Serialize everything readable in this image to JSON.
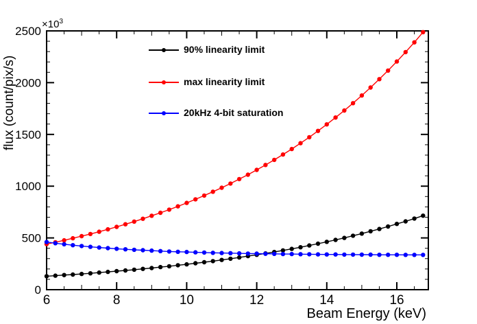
{
  "figure": {
    "background": "#ffffff",
    "frame_color": "#000000"
  },
  "y_axis": {
    "title": "flux (count/pix/s)",
    "power_label": "×10",
    "power_exponent": "3",
    "tick_labels": [
      "0",
      "500",
      "1000",
      "1500",
      "2000",
      "2500"
    ],
    "range": [
      0,
      2500
    ],
    "major_step": 500,
    "minor_step": 100
  },
  "x_axis": {
    "title": "Beam Energy (keV)",
    "tick_labels": [
      "6",
      "8",
      "10",
      "12",
      "14",
      "16"
    ],
    "range": [
      6,
      16.9
    ],
    "major_step": 2,
    "minor_step": 0.5
  },
  "legend": {
    "entries": [
      {
        "label": "90% linearity limit",
        "color": "#000000"
      },
      {
        "label": "max linearity limit",
        "color": "#ff0000"
      },
      {
        "label": "20kHz 4-bit saturation",
        "color": "#0000ff"
      }
    ]
  },
  "chart_data": {
    "type": "line",
    "title": "",
    "xlabel": "Beam Energy (keV)",
    "ylabel": "flux (count/pix/s)",
    "y_multiplier": "×10³",
    "xlim": [
      6,
      16.9
    ],
    "ylim": [
      0,
      2500
    ],
    "grid": false,
    "legend_position": "top-left-inside",
    "x": [
      6,
      6.25,
      6.5,
      6.75,
      7,
      7.25,
      7.5,
      7.75,
      8,
      8.25,
      8.5,
      8.75,
      9,
      9.25,
      9.5,
      9.75,
      10,
      10.25,
      10.5,
      10.75,
      11,
      11.25,
      11.5,
      11.75,
      12,
      12.25,
      12.5,
      12.75,
      13,
      13.25,
      13.5,
      13.75,
      14,
      14.25,
      14.5,
      14.75,
      15,
      15.25,
      15.5,
      15.75,
      16,
      16.25,
      16.5,
      16.75
    ],
    "series": [
      {
        "name": "90% linearity limit",
        "color": "#000000",
        "marker": "circle",
        "values": [
          130,
          135,
          141,
          146,
          152,
          158,
          165,
          172,
          179,
          186,
          193,
          201,
          209,
          218,
          226,
          236,
          245,
          255,
          265,
          276,
          287,
          299,
          311,
          324,
          337,
          350,
          364,
          379,
          394,
          410,
          427,
          444,
          462,
          481,
          500,
          521,
          542,
          564,
          586,
          610,
          635,
          660,
          687,
          715
        ]
      },
      {
        "name": "max linearity limit",
        "color": "#ff0000",
        "marker": "circle",
        "values": [
          440,
          458,
          477,
          497,
          517,
          538,
          560,
          583,
          607,
          632,
          658,
          685,
          714,
          743,
          773,
          805,
          838,
          873,
          909,
          946,
          985,
          1025,
          1068,
          1111,
          1157,
          1205,
          1254,
          1306,
          1359,
          1415,
          1473,
          1534,
          1597,
          1663,
          1731,
          1802,
          1876,
          1953,
          2034,
          2117,
          2204,
          2295,
          2389,
          2488
        ]
      },
      {
        "name": "20kHz 4-bit saturation",
        "color": "#0000ff",
        "marker": "circle",
        "values": [
          460,
          449,
          439,
          430,
          422,
          414,
          407,
          401,
          395,
          390,
          385,
          381,
          377,
          373,
          369,
          366,
          364,
          361,
          359,
          356,
          354,
          353,
          351,
          349,
          348,
          347,
          346,
          344,
          344,
          343,
          342,
          341,
          340,
          340,
          339,
          339,
          338,
          338,
          337,
          337,
          337,
          336,
          336,
          336
        ]
      }
    ]
  }
}
